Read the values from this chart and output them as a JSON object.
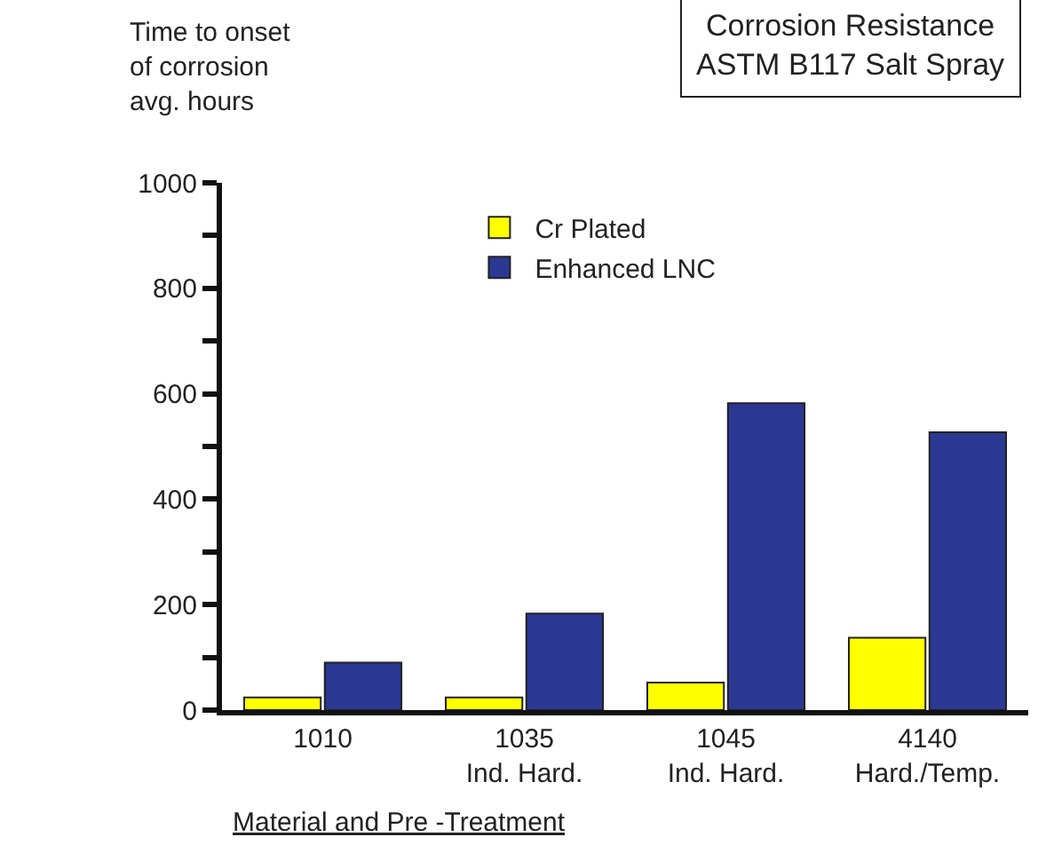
{
  "chart_data": {
    "type": "bar",
    "title": "Corrosion Resistance\nASTM B117 Salt Spray",
    "ylabel": "Time to onset\nof corrosion\navg. hours",
    "xlabel": "Material and Pre -Treatment",
    "categories": [
      "1010",
      "1035\nInd. Hard.",
      "1045\nInd. Hard.",
      "4140\nHard./Temp."
    ],
    "series": [
      {
        "name": "Cr Plated",
        "color": "#ffff00",
        "values": [
          24,
          24,
          52,
          137
        ]
      },
      {
        "name": "Enhanced LNC",
        "color": "#2b3894",
        "values": [
          90,
          183,
          582,
          527
        ]
      }
    ],
    "ylim": [
      0,
      1000
    ],
    "yticks": [
      0,
      {
        "value": 100,
        "label": null
      },
      200,
      {
        "value": 300,
        "label": null
      },
      400,
      {
        "value": 500,
        "label": null
      },
      600,
      {
        "value": 700,
        "label": null
      },
      800,
      {
        "value": 900,
        "label": null
      },
      1000
    ],
    "grid": false,
    "legend": "top"
  }
}
